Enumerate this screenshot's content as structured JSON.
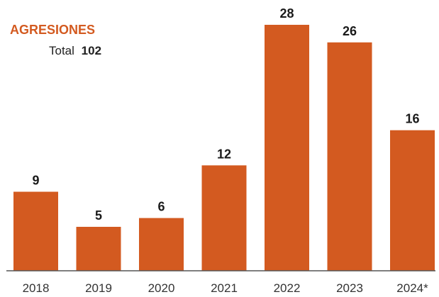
{
  "colors": {
    "bar": "#d35a20",
    "title": "#d35a20",
    "axis": "#555555"
  },
  "chart_data": {
    "type": "bar",
    "title": "AGRESIONES",
    "subtitle_label": "Total",
    "subtitle_value": "102",
    "categories": [
      "2018",
      "2019",
      "2020",
      "2021",
      "2022",
      "2023",
      "2024*"
    ],
    "values": [
      9,
      5,
      6,
      12,
      28,
      26,
      16
    ],
    "value_labels": [
      "9",
      "5",
      "6",
      "12",
      "28",
      "26",
      "16"
    ],
    "xlabel": "",
    "ylabel": "",
    "ylim": [
      0,
      28
    ],
    "grid": false,
    "legend": "none"
  }
}
